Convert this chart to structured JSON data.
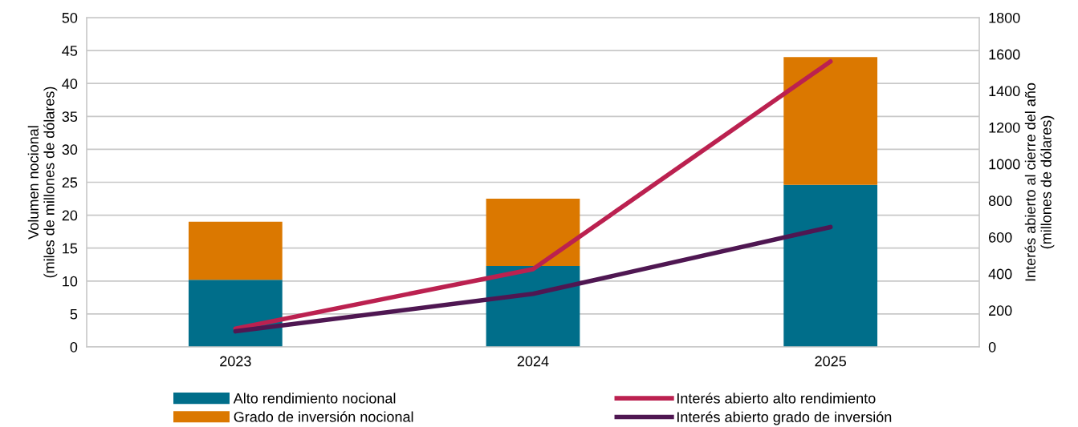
{
  "chart_data": {
    "type": "bar",
    "stacked": true,
    "categories": [
      "2023",
      "2024",
      "2025"
    ],
    "series": [
      {
        "name": "Alto rendimiento nocional",
        "color": "#006e8a",
        "values": [
          10.2,
          12.3,
          24.6
        ]
      },
      {
        "name": "Grado de inversión nocional",
        "color": "#db7800",
        "values": [
          8.8,
          10.2,
          19.4
        ]
      },
      {
        "name": "Interés abierto alto rendimiento",
        "type": "line",
        "axis": "y2",
        "color": "#bb2150",
        "values": [
          100,
          425,
          1560
        ]
      },
      {
        "name": "Interés abierto grado de inversión",
        "type": "line",
        "axis": "y2",
        "color": "#4f1752",
        "values": [
          85,
          290,
          655
        ]
      }
    ],
    "ylabel": "Volumen nocional\n(miles de millones de dólares)",
    "y2label": "Interés abierto al cierre del año\n(millones de dólares)",
    "ylim": [
      0,
      50
    ],
    "yticks": [
      0,
      5,
      10,
      15,
      20,
      25,
      30,
      35,
      40,
      45,
      50
    ],
    "y2lim": [
      0,
      1800
    ],
    "y2ticks": [
      0,
      200,
      400,
      600,
      800,
      1000,
      1200,
      1400,
      1600,
      1800
    ],
    "grid": "y",
    "legend": "bottom",
    "marker": "none",
    "line_style": "solid"
  }
}
